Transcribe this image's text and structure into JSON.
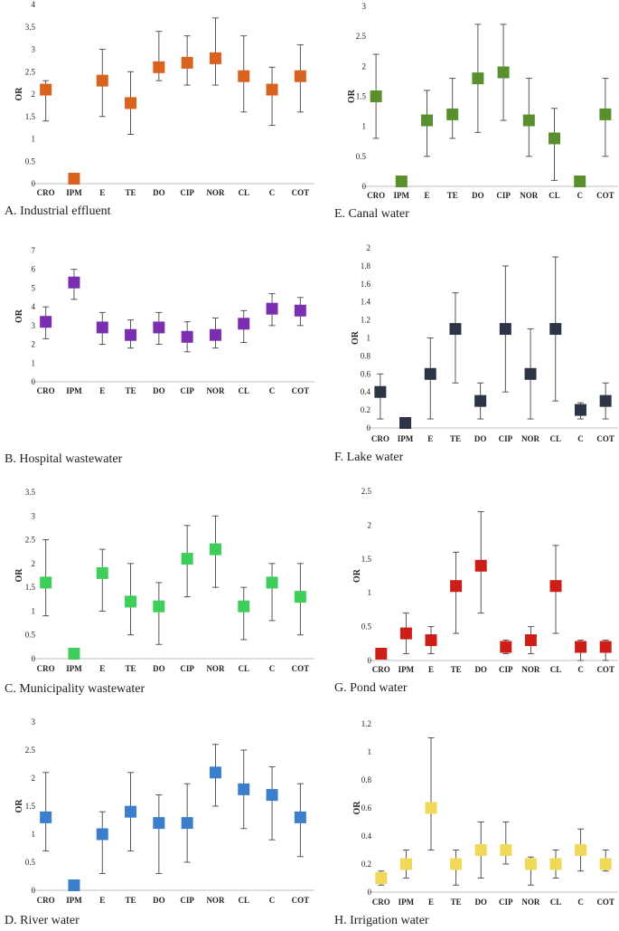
{
  "chart_data": [
    {
      "type": "scatter",
      "caption": "A. Industrial effluent",
      "ylabel": "OR",
      "color": "#d9621e",
      "ylim": [
        0,
        4
      ],
      "yticks": [
        "0",
        "0.5",
        "1",
        "1.5",
        "2",
        "2.5",
        "3",
        "3.5",
        "4"
      ],
      "categories": [
        "CRO",
        "IPM",
        "E",
        "TE",
        "DO",
        "CIP",
        "NOR",
        "CL",
        "C",
        "COT"
      ],
      "values": [
        2.1,
        0.02,
        2.3,
        1.8,
        2.6,
        2.7,
        2.8,
        2.4,
        2.1,
        2.4
      ],
      "lower": [
        1.4,
        null,
        1.5,
        1.1,
        2.3,
        2.2,
        2.2,
        1.6,
        1.3,
        1.6
      ],
      "upper": [
        2.3,
        null,
        3.0,
        2.5,
        3.4,
        3.3,
        3.7,
        3.3,
        2.6,
        3.1
      ]
    },
    {
      "type": "scatter",
      "caption": "B. Hospital wastewater",
      "ylabel": "OR",
      "color": "#7a2fb0",
      "ylim": [
        0,
        7
      ],
      "yticks": [
        "0",
        "1",
        "2",
        "3",
        "4",
        "5",
        "6",
        "7"
      ],
      "categories": [
        "CRO",
        "IPM",
        "E",
        "TE",
        "DO",
        "CIP",
        "NOR",
        "CL",
        "C",
        "COT"
      ],
      "values": [
        3.2,
        5.3,
        2.9,
        2.5,
        2.9,
        2.4,
        2.5,
        3.1,
        3.9,
        3.8
      ],
      "lower": [
        2.3,
        4.4,
        2.0,
        1.8,
        2.0,
        1.6,
        1.8,
        2.1,
        3.0,
        3.0
      ],
      "upper": [
        4.0,
        6.0,
        3.7,
        3.3,
        3.7,
        3.2,
        3.4,
        3.8,
        4.7,
        4.5
      ]
    },
    {
      "type": "scatter",
      "caption": "C. Municipality wastewater",
      "ylabel": "OR",
      "color": "#3ecf5a",
      "ylim": [
        0,
        3.5
      ],
      "yticks": [
        "0",
        "0.5",
        "1",
        "1.5",
        "2",
        "2.5",
        "3",
        "3.5"
      ],
      "categories": [
        "CRO",
        "IPM",
        "E",
        "TE",
        "DO",
        "CIP",
        "NOR",
        "CL",
        "C",
        "COT"
      ],
      "values": [
        1.6,
        0.02,
        1.8,
        1.2,
        1.1,
        2.1,
        2.3,
        1.1,
        1.6,
        1.3
      ],
      "lower": [
        0.9,
        null,
        1.0,
        0.5,
        0.3,
        1.3,
        1.5,
        0.4,
        0.8,
        0.5
      ],
      "upper": [
        2.5,
        null,
        2.3,
        2.0,
        1.6,
        2.8,
        3.0,
        1.5,
        2.0,
        2.0
      ]
    },
    {
      "type": "scatter",
      "caption": "D. River water",
      "ylabel": "OR",
      "color": "#3b7fcc",
      "ylim": [
        0,
        3
      ],
      "yticks": [
        "0",
        "0.5",
        "1",
        "1.5",
        "2",
        "2.5",
        "3"
      ],
      "categories": [
        "CRO",
        "IPM",
        "E",
        "TE",
        "DO",
        "CIP",
        "NOR",
        "CL",
        "C",
        "COT"
      ],
      "values": [
        1.3,
        0.02,
        1.0,
        1.4,
        1.2,
        1.2,
        2.1,
        1.8,
        1.7,
        1.3
      ],
      "lower": [
        0.7,
        null,
        0.3,
        0.7,
        0.3,
        0.5,
        1.5,
        1.1,
        0.9,
        0.6
      ],
      "upper": [
        2.1,
        null,
        1.4,
        2.1,
        1.7,
        1.9,
        2.6,
        2.5,
        2.2,
        1.9
      ]
    },
    {
      "type": "scatter",
      "caption": "E. Canal water",
      "ylabel": "OR",
      "color": "#5a8f2e",
      "ylim": [
        0,
        3
      ],
      "yticks": [
        "0",
        "0.5",
        "1",
        "1.5",
        "2",
        "2.5",
        "3"
      ],
      "categories": [
        "CRO",
        "IPM",
        "E",
        "TE",
        "DO",
        "CIP",
        "NOR",
        "CL",
        "C",
        "COT"
      ],
      "values": [
        1.5,
        0.02,
        1.1,
        1.2,
        1.8,
        1.9,
        1.1,
        0.8,
        0.02,
        1.2
      ],
      "lower": [
        0.8,
        null,
        0.5,
        0.8,
        0.9,
        1.1,
        0.5,
        0.1,
        null,
        0.5
      ],
      "upper": [
        2.2,
        null,
        1.6,
        1.8,
        2.7,
        2.7,
        1.8,
        1.3,
        null,
        1.8
      ]
    },
    {
      "type": "scatter",
      "caption": "F. Lake water",
      "ylabel": "OR",
      "color": "#2b3545",
      "ylim": [
        0,
        2
      ],
      "yticks": [
        "0",
        "0.2",
        "0.4",
        "0.6",
        "0.8",
        "1",
        "1.2",
        "1.4",
        "1.6",
        "1.8",
        "2"
      ],
      "categories": [
        "CRO",
        "IPM",
        "E",
        "TE",
        "DO",
        "CIP",
        "NOR",
        "CL",
        "C",
        "COT"
      ],
      "values": [
        0.4,
        0.02,
        0.6,
        1.1,
        0.3,
        1.1,
        0.6,
        1.1,
        0.2,
        0.3
      ],
      "lower": [
        0.1,
        null,
        0.1,
        0.5,
        0.1,
        0.4,
        0.1,
        0.3,
        0.1,
        0.1
      ],
      "upper": [
        0.6,
        null,
        1.0,
        1.5,
        0.5,
        1.8,
        1.1,
        1.9,
        0.28,
        0.5
      ]
    },
    {
      "type": "scatter",
      "caption": "G. Pond water",
      "ylabel": "OR",
      "color": "#cc1e16",
      "ylim": [
        0,
        2.5
      ],
      "yticks": [
        "0",
        "0.5",
        "1",
        "1.5",
        "2",
        "2.5"
      ],
      "categories": [
        "CRO",
        "IPM",
        "E",
        "TE",
        "DO",
        "CIP",
        "NOR",
        "CL",
        "C",
        "COT"
      ],
      "values": [
        0.1,
        0.4,
        0.3,
        1.1,
        1.4,
        0.2,
        0.3,
        1.1,
        0.2,
        0.2
      ],
      "lower": [
        0.02,
        0.1,
        0.1,
        0.4,
        0.7,
        0.1,
        0.1,
        0.4,
        0.0,
        0.0
      ],
      "upper": [
        0.15,
        0.7,
        0.5,
        1.6,
        2.2,
        0.3,
        0.5,
        1.7,
        0.3,
        0.3
      ]
    },
    {
      "type": "scatter",
      "caption": "H. Irrigation water",
      "ylabel": "OR",
      "color": "#f0d858",
      "ylim": [
        0,
        1.2
      ],
      "yticks": [
        "0",
        "0.2",
        "0.4",
        "0.6",
        "0.8",
        "1",
        "1.2"
      ],
      "categories": [
        "CRO",
        "IPM",
        "E",
        "TE",
        "DO",
        "CIP",
        "NOR",
        "CL",
        "C",
        "COT"
      ],
      "values": [
        0.1,
        0.2,
        0.6,
        0.2,
        0.3,
        0.3,
        0.2,
        0.2,
        0.3,
        0.2
      ],
      "lower": [
        0.05,
        0.1,
        0.3,
        0.05,
        0.1,
        0.2,
        0.05,
        0.1,
        0.15,
        0.15
      ],
      "upper": [
        0.15,
        0.3,
        1.1,
        0.3,
        0.5,
        0.5,
        0.25,
        0.3,
        0.45,
        0.3
      ]
    }
  ]
}
